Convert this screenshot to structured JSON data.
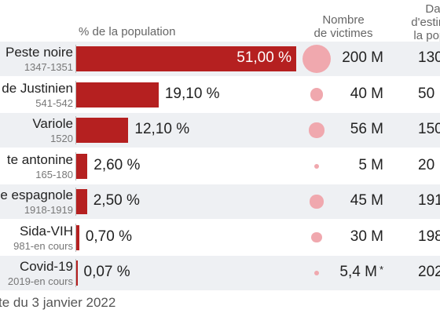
{
  "headers": {
    "pct": "% de la population",
    "victims": [
      "Nombre",
      "de victimes"
    ],
    "date": [
      "Da",
      "d'estima",
      "la popu"
    ]
  },
  "footer": "te du 3 janvier 2022",
  "colors": {
    "bar": "#b52020",
    "bubble": "#f0a8ae",
    "row_alt": "#eef0f3"
  },
  "chart_data": {
    "type": "bar",
    "orientation": "horizontal",
    "categories": [
      "Peste noire",
      "de Justinien",
      "Variole",
      "te antonine",
      "e espagnole",
      "Sida-VIH",
      "Covid-19"
    ],
    "periods": [
      "1347-1351",
      "541-542",
      "1520",
      "165-180",
      "1918-1919",
      "981-en cours",
      "2019-en cours"
    ],
    "series": [
      {
        "name": "% de la population",
        "values": [
          51.0,
          19.1,
          12.1,
          2.6,
          2.5,
          0.7,
          0.07
        ],
        "labels": [
          "51,00 %",
          "19,10 %",
          "12,10 %",
          "2,60 %",
          "2,50 %",
          "0,70 %",
          "0,07 %"
        ]
      },
      {
        "name": "Nombre de victimes",
        "values_millions": [
          200,
          40,
          56,
          5,
          45,
          30,
          5.4
        ],
        "labels": [
          "200 M",
          "40 M",
          "56 M",
          "5 M",
          "45 M",
          "30 M",
          "5,4 M"
        ],
        "footnote_marks": [
          "",
          "",
          "",
          "",
          "",
          "",
          "*"
        ]
      }
    ],
    "date_column_partial": [
      "130",
      "50",
      "150",
      "20",
      "191",
      "198",
      "202"
    ],
    "xlim": [
      0,
      51
    ]
  }
}
